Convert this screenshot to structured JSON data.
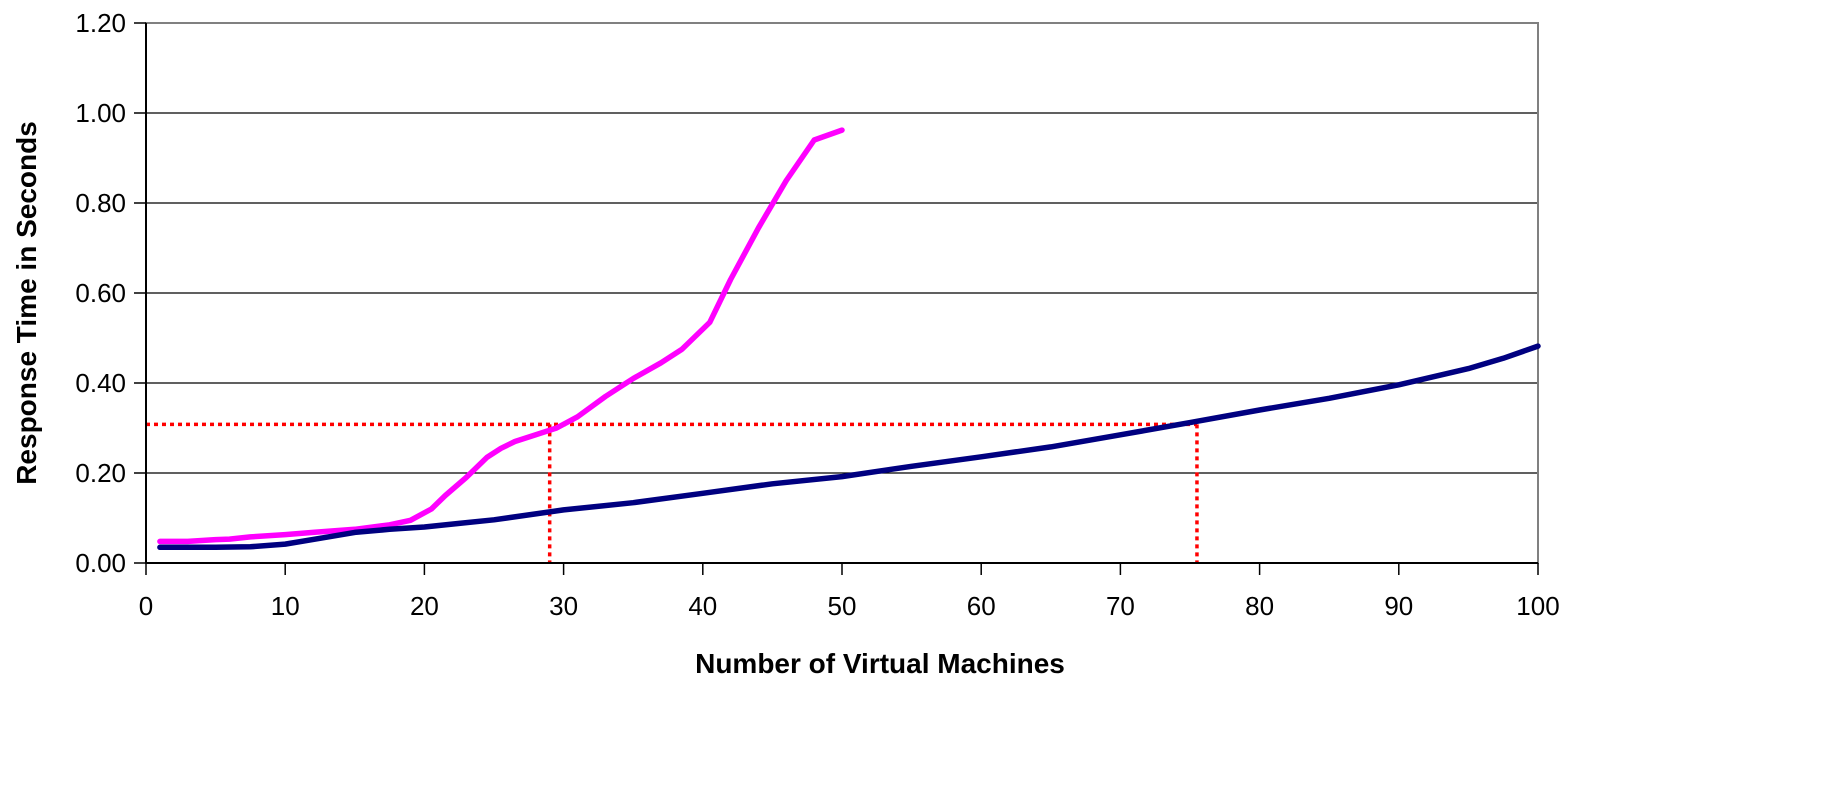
{
  "chart_data": {
    "type": "line",
    "title": "",
    "xlabel": "Number of Virtual Machines",
    "ylabel": "Response Time in Seconds",
    "xlim": [
      0,
      100
    ],
    "ylim": [
      0,
      1.2
    ],
    "x_ticks": [
      "0",
      "10",
      "20",
      "30",
      "40",
      "50",
      "60",
      "70",
      "80",
      "90",
      "100"
    ],
    "y_ticks": [
      "0.00",
      "0.20",
      "0.40",
      "0.60",
      "0.80",
      "1.00",
      "1.20"
    ],
    "grid": "horizontal",
    "legend": "none",
    "series": [
      {
        "color": "#ff00ff",
        "x": [
          1,
          3,
          5,
          6,
          7.5,
          10,
          12,
          15,
          17.5,
          19,
          20.5,
          21.5,
          23,
          24.5,
          25.5,
          26.5,
          28,
          29.5,
          31,
          33,
          35,
          37,
          38.5,
          40.5,
          42,
          44,
          46,
          48,
          50
        ],
        "y": [
          0.048,
          0.048,
          0.052,
          0.053,
          0.058,
          0.063,
          0.068,
          0.075,
          0.085,
          0.095,
          0.12,
          0.15,
          0.19,
          0.235,
          0.255,
          0.27,
          0.285,
          0.3,
          0.325,
          0.37,
          0.41,
          0.445,
          0.475,
          0.535,
          0.63,
          0.745,
          0.85,
          0.94,
          0.962
        ]
      },
      {
        "color": "#000080",
        "x": [
          1,
          5,
          7.5,
          10,
          12.5,
          15,
          17.5,
          20,
          22.5,
          25,
          30,
          35,
          40,
          45,
          50,
          55,
          60,
          65,
          70,
          75,
          80,
          85,
          90,
          95,
          97.5,
          100
        ],
        "y": [
          0.035,
          0.035,
          0.036,
          0.042,
          0.055,
          0.068,
          0.075,
          0.08,
          0.088,
          0.096,
          0.118,
          0.134,
          0.155,
          0.176,
          0.192,
          0.215,
          0.236,
          0.258,
          0.285,
          0.312,
          0.34,
          0.366,
          0.396,
          0.432,
          0.455,
          0.482
        ]
      }
    ],
    "reference_lines": {
      "color": "#ff0000",
      "y": 0.308,
      "x": [
        29,
        75.5
      ]
    }
  }
}
